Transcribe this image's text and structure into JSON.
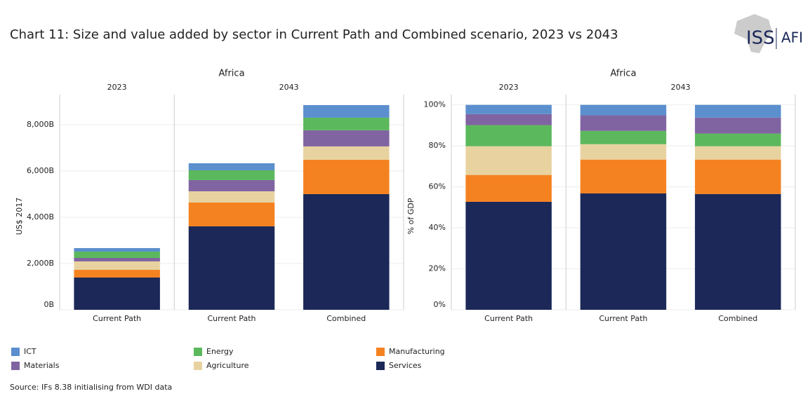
{
  "title": "Chart 11: Size and value added by sector in Current Path and Combined scenario, 2023 vs 2043",
  "source": "Source: IFs 8.38 initialising from WDI data",
  "logo": {
    "left": "ISS",
    "right": "AFI"
  },
  "chart_data": [
    {
      "type": "bar",
      "stacked": true,
      "title": "Africa",
      "ylabel": "US$ 2017",
      "facets": [
        {
          "label": "2023",
          "size": 1
        },
        {
          "label": "2043",
          "size": 2
        }
      ],
      "categories": [
        "Current Path",
        "Current Path",
        "Combined"
      ],
      "ylim": [
        0,
        9300
      ],
      "yticks": [
        {
          "value": 0,
          "label": "0B"
        },
        {
          "value": 2000,
          "label": "2,000B"
        },
        {
          "value": 4000,
          "label": "4,000B"
        },
        {
          "value": 6000,
          "label": "6,000B"
        },
        {
          "value": 8000,
          "label": "8,000B"
        }
      ],
      "grid": true,
      "series": [
        {
          "name": "Services",
          "color": "#1b2858",
          "values": [
            1394,
            3606,
            5000
          ]
        },
        {
          "name": "Manufacturing",
          "color": "#f58220",
          "values": [
            333,
            1030,
            1485
          ]
        },
        {
          "name": "Agriculture",
          "color": "#e8d3a0",
          "values": [
            364,
            485,
            576
          ]
        },
        {
          "name": "Materials",
          "color": "#8064a2",
          "values": [
            151,
            485,
            697
          ]
        },
        {
          "name": "Energy",
          "color": "#5cb85c",
          "values": [
            273,
            424,
            545
          ]
        },
        {
          "name": "ICT",
          "color": "#5b8fce",
          "values": [
            152,
            303,
            545
          ]
        }
      ]
    },
    {
      "type": "bar",
      "stacked": true,
      "title": "Africa",
      "ylabel": "% of GDP",
      "facets": [
        {
          "label": "2023",
          "size": 1
        },
        {
          "label": "2043",
          "size": 2
        }
      ],
      "categories": [
        "Current Path",
        "Current Path",
        "Combined"
      ],
      "ylim": [
        0,
        105
      ],
      "yticks": [
        {
          "value": 0,
          "label": "0%"
        },
        {
          "value": 20,
          "label": "20%"
        },
        {
          "value": 40,
          "label": "40%"
        },
        {
          "value": 60,
          "label": "60%"
        },
        {
          "value": 80,
          "label": "80%"
        },
        {
          "value": 100,
          "label": "100%"
        }
      ],
      "grid": true,
      "series": [
        {
          "name": "Services",
          "color": "#1b2858",
          "values": [
            52.7,
            56.8,
            56.5
          ]
        },
        {
          "name": "Manufacturing",
          "color": "#f58220",
          "values": [
            13.1,
            16.5,
            16.8
          ]
        },
        {
          "name": "Agriculture",
          "color": "#e8d3a0",
          "values": [
            14,
            7.5,
            6.5
          ]
        },
        {
          "name": "Energy",
          "color": "#5cb85c",
          "values": [
            10.3,
            6.5,
            6.2
          ]
        },
        {
          "name": "Materials",
          "color": "#8064a2",
          "values": [
            5.4,
            7.6,
            7.8
          ]
        },
        {
          "name": "ICT",
          "color": "#5b8fce",
          "values": [
            4.5,
            5.1,
            6.2
          ]
        }
      ]
    }
  ]
}
